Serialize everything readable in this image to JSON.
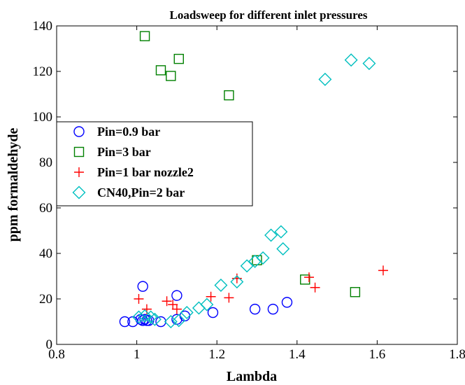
{
  "chart_data": {
    "type": "scatter",
    "title": "Loadsweep for different inlet pressures",
    "xlabel": "Lambda",
    "ylabel": "ppm formaldehyde",
    "xlim": [
      0.8,
      1.8
    ],
    "ylim": [
      0,
      140
    ],
    "xticks": [
      "0.8",
      "1",
      "1.2",
      "1.4",
      "1.6",
      "1.8"
    ],
    "yticks": [
      "0",
      "20",
      "40",
      "60",
      "80",
      "100",
      "120",
      "140"
    ],
    "grid": false,
    "legend_position": "left-middle",
    "series": [
      {
        "name": "Pin=0.9 bar",
        "marker": "circle",
        "color": "#0000ff",
        "x": [
          0.97,
          0.99,
          1.01,
          1.015,
          1.02,
          1.025,
          1.03,
          1.06,
          1.1,
          1.12,
          1.19,
          1.295,
          1.34,
          1.375,
          1.015,
          1.1
        ],
        "y": [
          10,
          10,
          11,
          10.5,
          11,
          10.5,
          10.5,
          10,
          11,
          12.5,
          14,
          15.5,
          15.5,
          18.5,
          25.5,
          21.5
        ]
      },
      {
        "name": "Pin=3 bar",
        "marker": "square",
        "color": "#008000",
        "x": [
          1.02,
          1.06,
          1.085,
          1.105,
          1.23,
          1.3,
          1.42,
          1.545
        ],
        "y": [
          135.5,
          120.5,
          118,
          125.5,
          109.5,
          37,
          28.5,
          23
        ]
      },
      {
        "name": "Pin=1 bar nozzle2",
        "marker": "plus",
        "color": "#ff0000",
        "x": [
          1.005,
          1.025,
          1.075,
          1.09,
          1.1,
          1.185,
          1.23,
          1.25,
          1.43,
          1.445,
          1.615
        ],
        "y": [
          20,
          15.5,
          19,
          17.5,
          15.5,
          21,
          20.5,
          29,
          29.5,
          25,
          32.5
        ]
      },
      {
        "name": "CN40,Pin=2 bar",
        "marker": "diamond",
        "color": "#00bfbf",
        "x": [
          1.005,
          1.02,
          1.035,
          1.045,
          1.085,
          1.105,
          1.125,
          1.155,
          1.175,
          1.21,
          1.25,
          1.275,
          1.295,
          1.315,
          1.335,
          1.36,
          1.365,
          1.47,
          1.535,
          1.58
        ],
        "y": [
          12,
          12.5,
          12,
          11,
          10,
          10.5,
          14,
          16,
          17.5,
          26,
          27.5,
          34.5,
          36.5,
          38,
          48,
          49.5,
          42,
          116.5,
          125,
          123.5
        ]
      }
    ]
  }
}
